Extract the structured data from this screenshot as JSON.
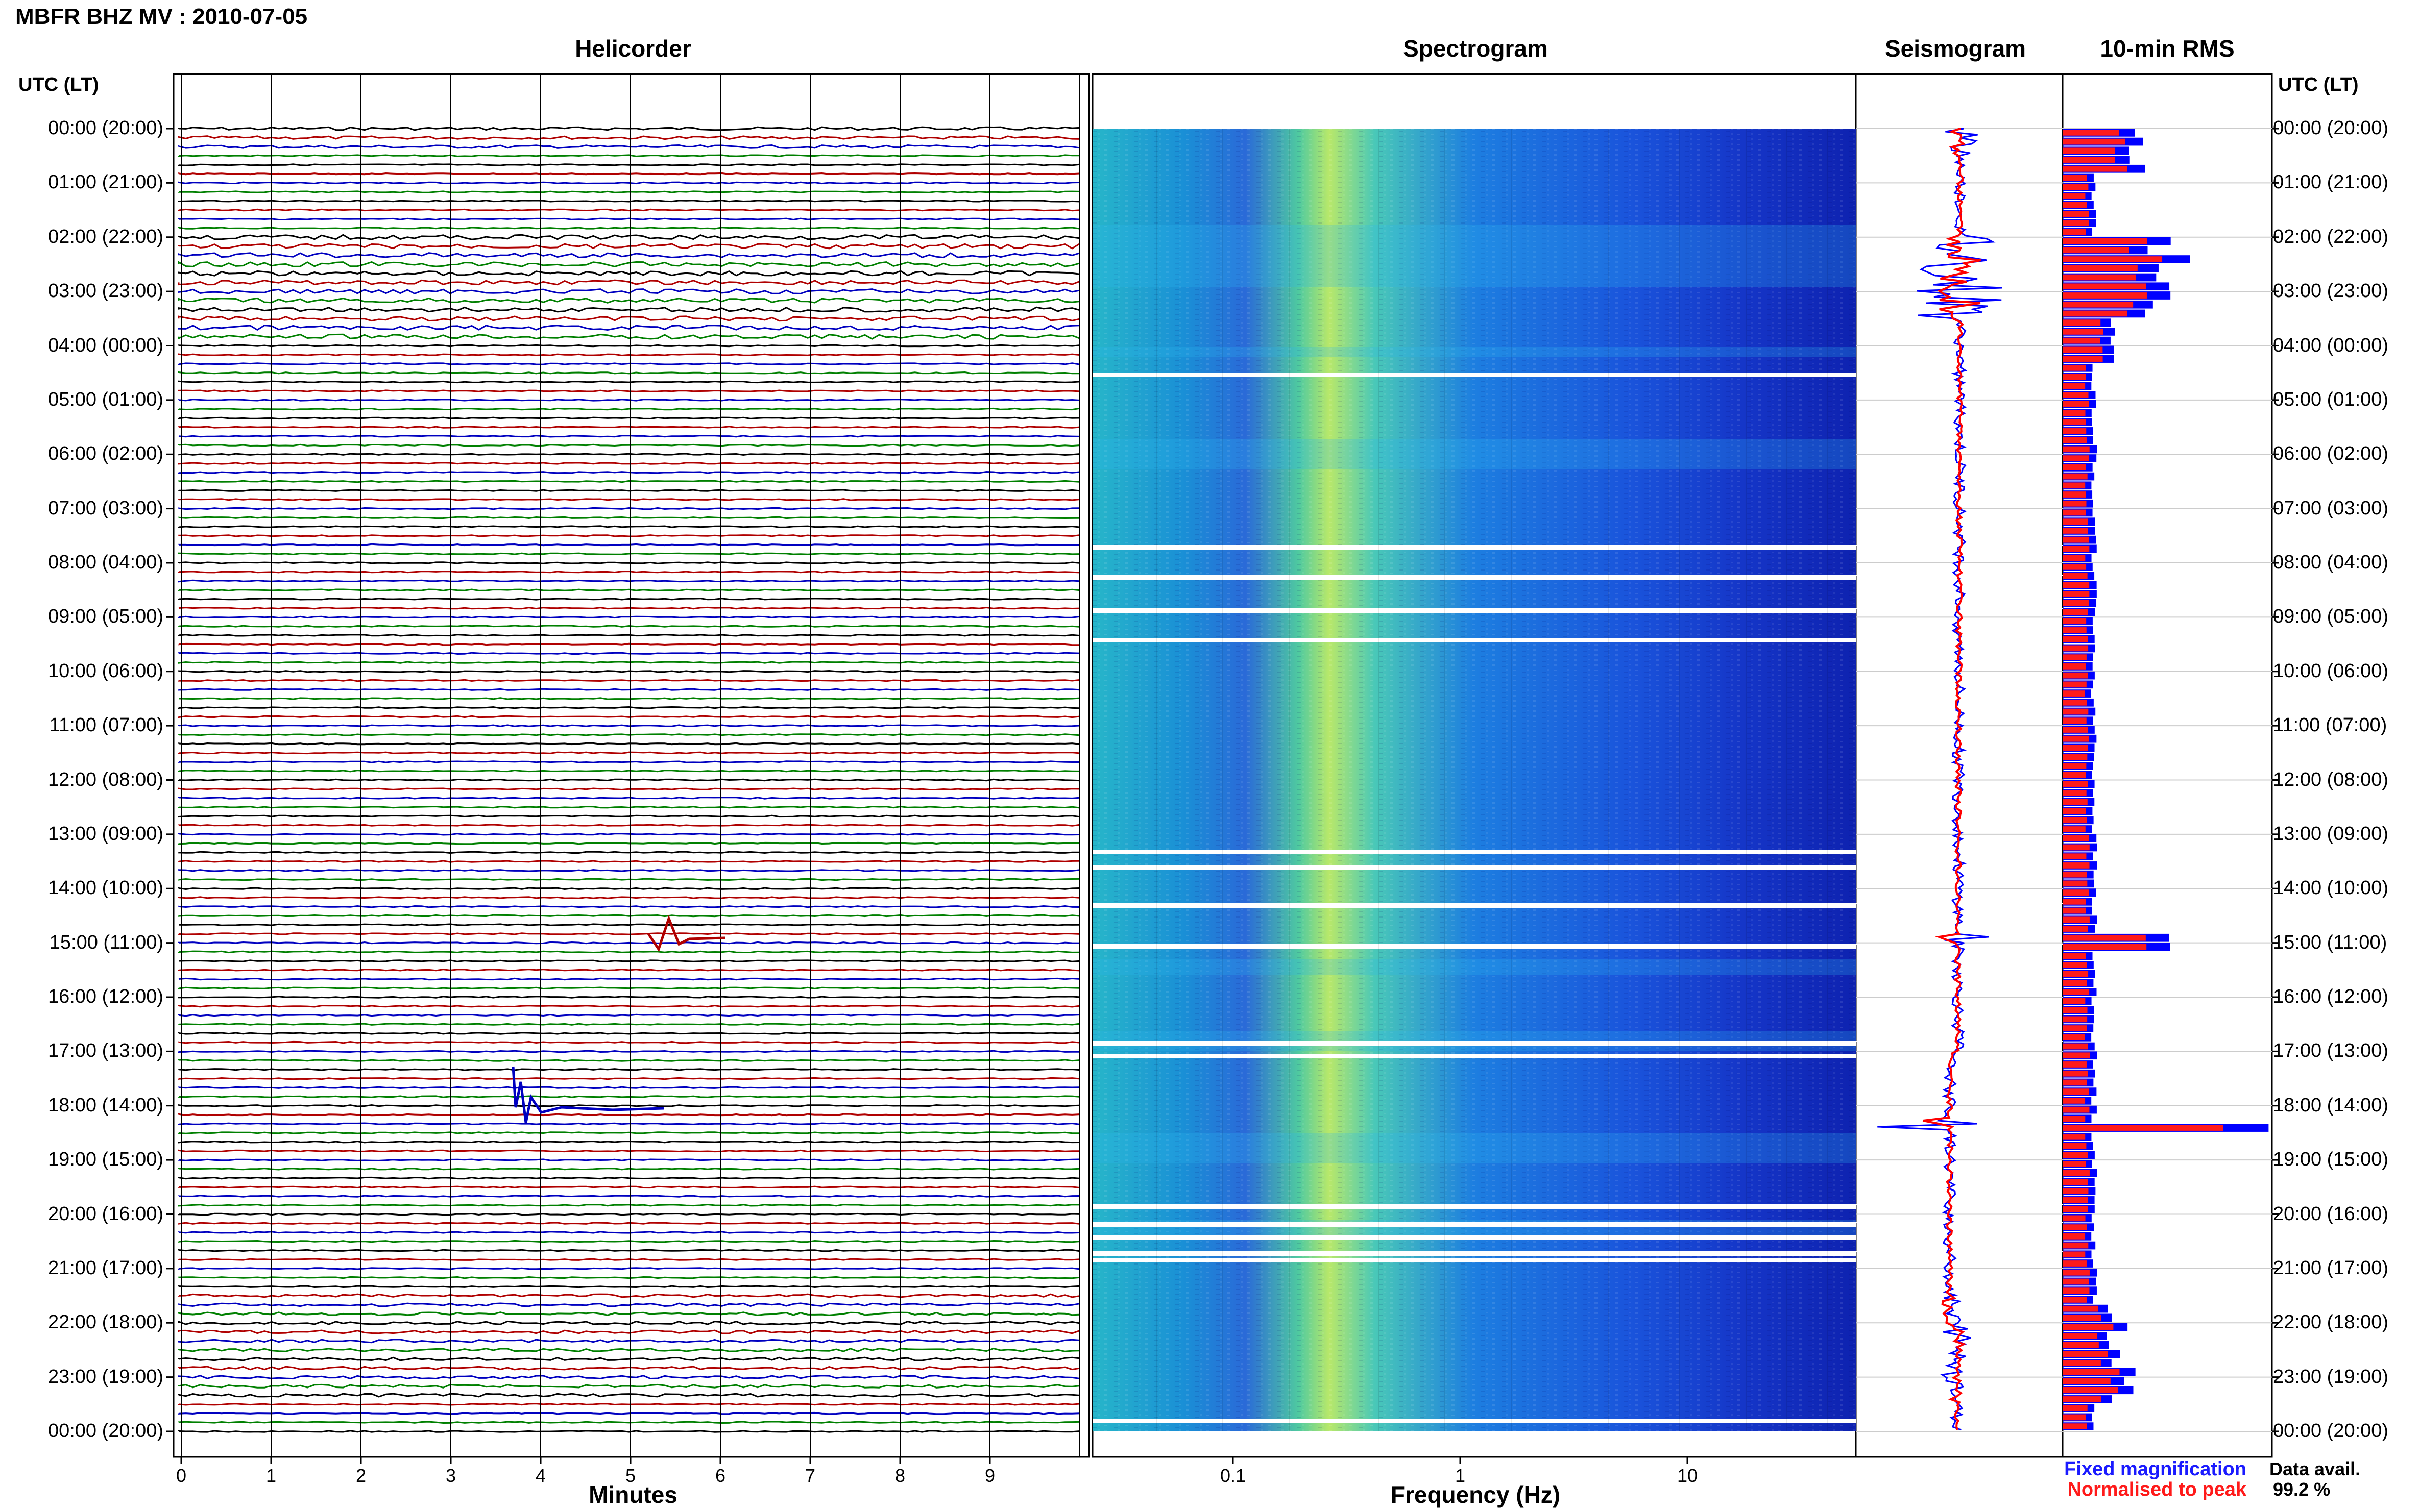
{
  "header": {
    "title": "MBFR BHZ MV : 2010-07-05",
    "utc_left": "UTC (LT)",
    "utc_right": "UTC (LT)"
  },
  "panels": {
    "helicorder": "Helicorder",
    "spectrogram": "Spectrogram",
    "seismogram": "Seismogram",
    "rms": "10-min RMS"
  },
  "hour_labels": [
    "00:00 (20:00)",
    "01:00 (21:00)",
    "02:00 (22:00)",
    "03:00 (23:00)",
    "04:00 (00:00)",
    "05:00 (01:00)",
    "06:00 (02:00)",
    "07:00 (03:00)",
    "08:00 (04:00)",
    "09:00 (05:00)",
    "10:00 (06:00)",
    "11:00 (07:00)",
    "12:00 (08:00)",
    "13:00 (09:00)",
    "14:00 (10:00)",
    "15:00 (11:00)",
    "16:00 (12:00)",
    "17:00 (13:00)",
    "18:00 (14:00)",
    "19:00 (15:00)",
    "20:00 (16:00)",
    "21:00 (17:00)",
    "22:00 (18:00)",
    "23:00 (19:00)",
    "00:00 (20:00)"
  ],
  "helicorder_axis": {
    "ticks": [
      "0",
      "1",
      "2",
      "3",
      "4",
      "5",
      "6",
      "7",
      "8",
      "9"
    ],
    "label": "Minutes",
    "trace_colors": [
      "#000000",
      "#b00000",
      "#0000c0",
      "#008000"
    ]
  },
  "spectrogram_axis": {
    "ticks": [
      "0.1",
      "1",
      "10"
    ],
    "label": "Frequency (Hz)"
  },
  "legend": {
    "fixed": "Fixed magnification",
    "normalised": "Normalised to peak",
    "fixed_color": "#0000ff",
    "normalised_color": "#ff0000"
  },
  "data_availability": {
    "label": "Data avail.",
    "value": "99.2 %"
  }
}
